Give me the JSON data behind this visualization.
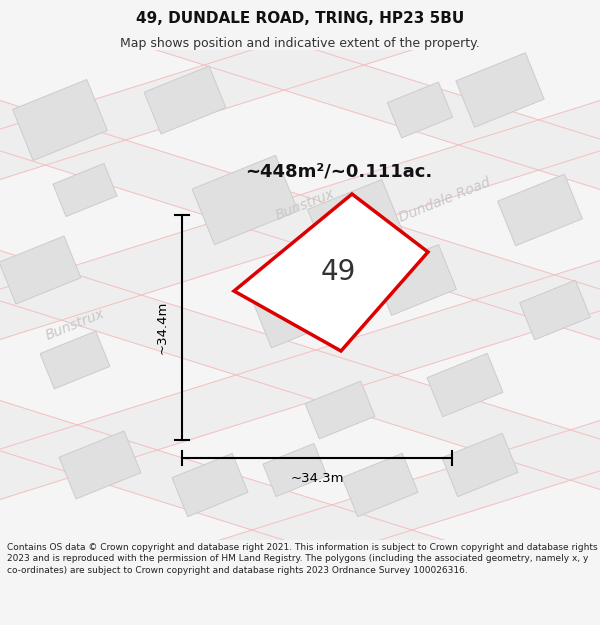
{
  "title_line1": "49, DUNDALE ROAD, TRING, HP23 5BU",
  "title_line2": "Map shows position and indicative extent of the property.",
  "area_label": "~448m²/~0.111ac.",
  "number_label": "49",
  "dim_width": "~34.3m",
  "dim_height": "~34.4m",
  "road_label_center": "Bunstrux",
  "road_label_right": "Dundale Road",
  "road_label_left": "Bunstrux",
  "footer_text": "Contains OS data © Crown copyright and database right 2021. This information is subject to Crown copyright and database rights 2023 and is reproduced with the permission of HM Land Registry. The polygons (including the associated geometry, namely x, y co-ordinates) are subject to Crown copyright and database rights 2023 Ordnance Survey 100026316.",
  "bg_color": "#f5f5f5",
  "map_bg": "#ffffff",
  "plot_color_red": "#dd0000",
  "building_color": "#e0e0e0",
  "building_stroke": "#cccccc",
  "road_pink": "#f5c0c0",
  "road_gray": "#eeeeee",
  "dim_line_color": "#000000",
  "road_text_color": "#c8c8c8",
  "title_fontsize": 11,
  "subtitle_fontsize": 9,
  "footer_fontsize": 6.5
}
